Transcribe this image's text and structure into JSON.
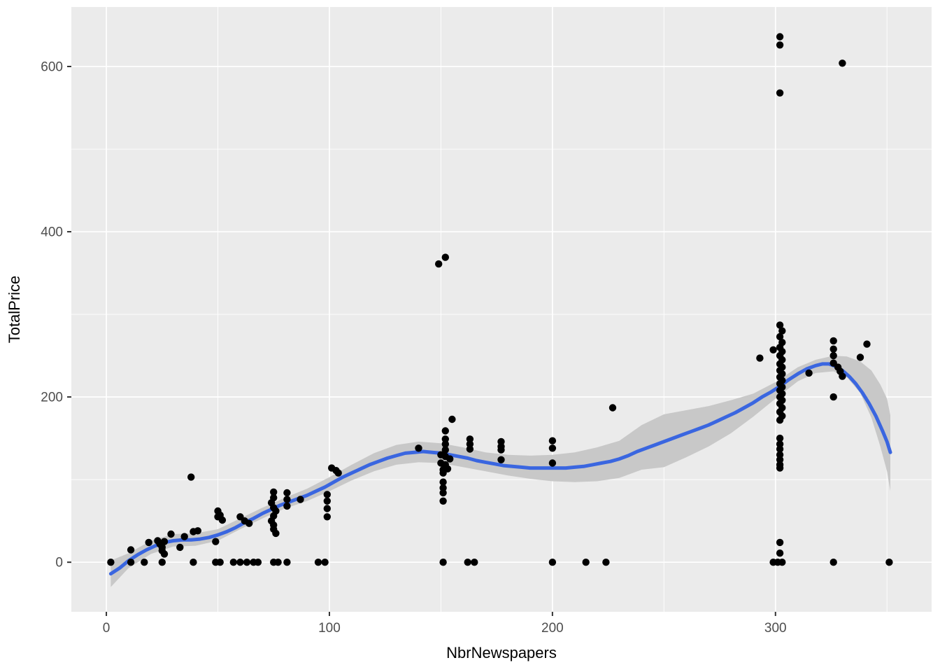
{
  "chart_data": {
    "type": "scatter",
    "title": "",
    "xlabel": "NbrNewspapers",
    "ylabel": "TotalPrice",
    "x_ticks": [
      0,
      100,
      200,
      300
    ],
    "y_ticks": [
      0,
      200,
      400,
      600
    ],
    "x_minor_gridlines": [
      50,
      150,
      250,
      350
    ],
    "y_minor_gridlines": [
      100,
      300,
      500
    ],
    "xlim": [
      -15.7,
      370
    ],
    "ylim": [
      -60,
      672
    ],
    "grid": "on",
    "legend": "none",
    "smoother": "loess with confidence ribbon",
    "points": [
      [
        2,
        0
      ],
      [
        11,
        15
      ],
      [
        11,
        0
      ],
      [
        17,
        0
      ],
      [
        19,
        24
      ],
      [
        23,
        26
      ],
      [
        24,
        22
      ],
      [
        25,
        18
      ],
      [
        25,
        14
      ],
      [
        26,
        25
      ],
      [
        26,
        10
      ],
      [
        25,
        0
      ],
      [
        29,
        34
      ],
      [
        33,
        18
      ],
      [
        35,
        31
      ],
      [
        38,
        103
      ],
      [
        39,
        37
      ],
      [
        39,
        0
      ],
      [
        41,
        38
      ],
      [
        49,
        25
      ],
      [
        49,
        0
      ],
      [
        50,
        55
      ],
      [
        50,
        62
      ],
      [
        51,
        57
      ],
      [
        51,
        0
      ],
      [
        52,
        51
      ],
      [
        57,
        0
      ],
      [
        60,
        55
      ],
      [
        60,
        0
      ],
      [
        62,
        50
      ],
      [
        63,
        0
      ],
      [
        64,
        47
      ],
      [
        66,
        0
      ],
      [
        68,
        0
      ],
      [
        74,
        72
      ],
      [
        74,
        50
      ],
      [
        75,
        85
      ],
      [
        75,
        78
      ],
      [
        75,
        66
      ],
      [
        75,
        56
      ],
      [
        75,
        45
      ],
      [
        75,
        40
      ],
      [
        75,
        0
      ],
      [
        76,
        62
      ],
      [
        76,
        35
      ],
      [
        77,
        0
      ],
      [
        81,
        84
      ],
      [
        81,
        76
      ],
      [
        81,
        68
      ],
      [
        81,
        0
      ],
      [
        87,
        76
      ],
      [
        95,
        0
      ],
      [
        98,
        0
      ],
      [
        99,
        82
      ],
      [
        99,
        74
      ],
      [
        99,
        65
      ],
      [
        99,
        55
      ],
      [
        101,
        114
      ],
      [
        103,
        111
      ],
      [
        104,
        108
      ],
      [
        140,
        138
      ],
      [
        149,
        361
      ],
      [
        152,
        369
      ],
      [
        155,
        173
      ],
      [
        152,
        159
      ],
      [
        152,
        149
      ],
      [
        152,
        143
      ],
      [
        152,
        136
      ],
      [
        150,
        130
      ],
      [
        152,
        128
      ],
      [
        154,
        125
      ],
      [
        150,
        120
      ],
      [
        152,
        118
      ],
      [
        153,
        113
      ],
      [
        151,
        112
      ],
      [
        151,
        108
      ],
      [
        151,
        97
      ],
      [
        151,
        90
      ],
      [
        151,
        84
      ],
      [
        151,
        74
      ],
      [
        151,
        0
      ],
      [
        162,
        0
      ],
      [
        165,
        0
      ],
      [
        163,
        149
      ],
      [
        163,
        143
      ],
      [
        163,
        137
      ],
      [
        177,
        146
      ],
      [
        177,
        140
      ],
      [
        177,
        136
      ],
      [
        177,
        124
      ],
      [
        200,
        147
      ],
      [
        200,
        138
      ],
      [
        200,
        120
      ],
      [
        200,
        0
      ],
      [
        215,
        0
      ],
      [
        224,
        0
      ],
      [
        227,
        187
      ],
      [
        293,
        247
      ],
      [
        299,
        257
      ],
      [
        302,
        287
      ],
      [
        303,
        280
      ],
      [
        302,
        273
      ],
      [
        303,
        266
      ],
      [
        302,
        260
      ],
      [
        303,
        255
      ],
      [
        302,
        250
      ],
      [
        303,
        245
      ],
      [
        302,
        240
      ],
      [
        303,
        236
      ],
      [
        302,
        232
      ],
      [
        303,
        228
      ],
      [
        302,
        224
      ],
      [
        303,
        220
      ],
      [
        302,
        216
      ],
      [
        303,
        212
      ],
      [
        302,
        208
      ],
      [
        303,
        204
      ],
      [
        302,
        200
      ],
      [
        303,
        196
      ],
      [
        302,
        192
      ],
      [
        303,
        187
      ],
      [
        302,
        182
      ],
      [
        303,
        177
      ],
      [
        302,
        172
      ],
      [
        302,
        150
      ],
      [
        302,
        143
      ],
      [
        302,
        137
      ],
      [
        302,
        130
      ],
      [
        302,
        124
      ],
      [
        302,
        118
      ],
      [
        302,
        114
      ],
      [
        302,
        24
      ],
      [
        302,
        11
      ],
      [
        299,
        0
      ],
      [
        301,
        0
      ],
      [
        303,
        0
      ],
      [
        302,
        636
      ],
      [
        302,
        626
      ],
      [
        302,
        568
      ],
      [
        330,
        604
      ],
      [
        315,
        229
      ],
      [
        326,
        268
      ],
      [
        326,
        258
      ],
      [
        326,
        250
      ],
      [
        326,
        241
      ],
      [
        328,
        236
      ],
      [
        329,
        231
      ],
      [
        330,
        225
      ],
      [
        326,
        200
      ],
      [
        326,
        0
      ],
      [
        338,
        248
      ],
      [
        341,
        264
      ],
      [
        351,
        0
      ]
    ],
    "smooth_line": [
      [
        2,
        -14
      ],
      [
        6,
        -7
      ],
      [
        10,
        2
      ],
      [
        14,
        9
      ],
      [
        18,
        15
      ],
      [
        22,
        20
      ],
      [
        26,
        24
      ],
      [
        30,
        26
      ],
      [
        34,
        27
      ],
      [
        38,
        27
      ],
      [
        42,
        28
      ],
      [
        46,
        30
      ],
      [
        50,
        33
      ],
      [
        54,
        37
      ],
      [
        58,
        42
      ],
      [
        62,
        48
      ],
      [
        66,
        53
      ],
      [
        70,
        59
      ],
      [
        74,
        64
      ],
      [
        78,
        69
      ],
      [
        82,
        73
      ],
      [
        86,
        77
      ],
      [
        90,
        81
      ],
      [
        94,
        86
      ],
      [
        98,
        91
      ],
      [
        102,
        97
      ],
      [
        106,
        103
      ],
      [
        110,
        108
      ],
      [
        114,
        113
      ],
      [
        118,
        118
      ],
      [
        122,
        122
      ],
      [
        126,
        126
      ],
      [
        130,
        129
      ],
      [
        134,
        132
      ],
      [
        138,
        133
      ],
      [
        142,
        134
      ],
      [
        146,
        133
      ],
      [
        150,
        132
      ],
      [
        154,
        130
      ],
      [
        158,
        128
      ],
      [
        162,
        126
      ],
      [
        166,
        123
      ],
      [
        170,
        121
      ],
      [
        174,
        119
      ],
      [
        178,
        117
      ],
      [
        182,
        116
      ],
      [
        186,
        115
      ],
      [
        190,
        114
      ],
      [
        194,
        114
      ],
      [
        198,
        114
      ],
      [
        202,
        114
      ],
      [
        206,
        114
      ],
      [
        210,
        115
      ],
      [
        214,
        116
      ],
      [
        218,
        118
      ],
      [
        222,
        120
      ],
      [
        226,
        122
      ],
      [
        230,
        125
      ],
      [
        234,
        129
      ],
      [
        238,
        134
      ],
      [
        242,
        138
      ],
      [
        246,
        142
      ],
      [
        250,
        146
      ],
      [
        254,
        150
      ],
      [
        258,
        154
      ],
      [
        262,
        158
      ],
      [
        266,
        162
      ],
      [
        270,
        166
      ],
      [
        274,
        171
      ],
      [
        278,
        176
      ],
      [
        282,
        181
      ],
      [
        286,
        187
      ],
      [
        290,
        193
      ],
      [
        294,
        200
      ],
      [
        298,
        206
      ],
      [
        302,
        213
      ],
      [
        306,
        221
      ],
      [
        310,
        228
      ],
      [
        314,
        234
      ],
      [
        318,
        238
      ],
      [
        321,
        240
      ],
      [
        324,
        240
      ],
      [
        327,
        237
      ],
      [
        330,
        232
      ],
      [
        333,
        225
      ],
      [
        336,
        216
      ],
      [
        339,
        205
      ],
      [
        342,
        192
      ],
      [
        345,
        177
      ],
      [
        348,
        159
      ],
      [
        350,
        146
      ],
      [
        351.5,
        133
      ]
    ],
    "ribbon": [
      [
        2,
        2,
        -30
      ],
      [
        10,
        11,
        -7
      ],
      [
        20,
        26,
        10
      ],
      [
        30,
        34,
        19
      ],
      [
        40,
        35,
        20
      ],
      [
        50,
        40,
        26
      ],
      [
        60,
        53,
        40
      ],
      [
        70,
        66,
        53
      ],
      [
        80,
        78,
        65
      ],
      [
        90,
        89,
        74
      ],
      [
        100,
        103,
        86
      ],
      [
        110,
        118,
        99
      ],
      [
        120,
        132,
        110
      ],
      [
        130,
        142,
        118
      ],
      [
        140,
        146,
        121
      ],
      [
        150,
        144,
        120
      ],
      [
        160,
        139,
        115
      ],
      [
        170,
        133,
        110
      ],
      [
        180,
        130,
        105
      ],
      [
        190,
        129,
        101
      ],
      [
        200,
        130,
        98
      ],
      [
        210,
        133,
        97
      ],
      [
        220,
        139,
        98
      ],
      [
        230,
        147,
        102
      ],
      [
        240,
        166,
        112
      ],
      [
        250,
        179,
        115
      ],
      [
        260,
        184,
        127
      ],
      [
        270,
        189,
        140
      ],
      [
        280,
        196,
        156
      ],
      [
        290,
        204,
        176
      ],
      [
        300,
        218,
        198
      ],
      [
        310,
        236,
        219
      ],
      [
        318,
        245,
        229
      ],
      [
        326,
        250,
        231
      ],
      [
        332,
        249,
        224
      ],
      [
        338,
        243,
        205
      ],
      [
        343,
        232,
        175
      ],
      [
        347,
        215,
        140
      ],
      [
        350,
        198,
        110
      ],
      [
        351.5,
        178,
        86
      ]
    ],
    "colors": {
      "page_background": "#FFFFFF",
      "panel_background": "#EBEBEB",
      "grid": "#FFFFFF",
      "point": "#000000",
      "smooth_line": "#3A66E0",
      "ribbon": "#C8C8C8",
      "tick_label": "#4D4D4D",
      "tick_mark": "#333333",
      "axis_title": "#000000"
    }
  }
}
